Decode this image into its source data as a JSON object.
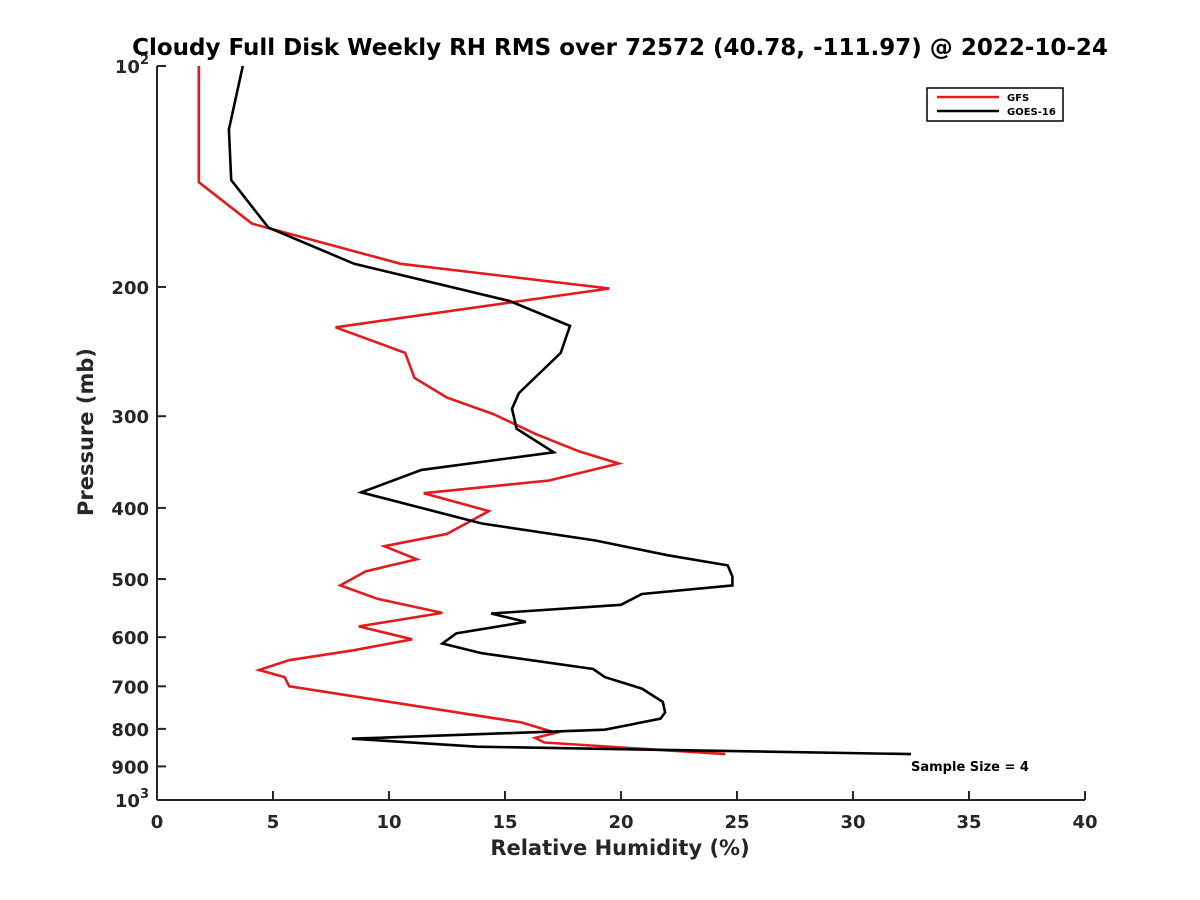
{
  "chart_data": {
    "type": "line",
    "title": "Cloudy Full Disk Weekly RH RMS over 72572 (40.78, -111.97) @ 2022-10-24",
    "xlabel": "Relative Humidity (%)",
    "ylabel": "Pressure (mb)",
    "xlim": [
      0,
      40
    ],
    "ylim": [
      100,
      1000
    ],
    "yscale": "log",
    "yreversed": true,
    "x_ticks": [
      0,
      5,
      10,
      15,
      20,
      25,
      30,
      35,
      40
    ],
    "x_tick_labels": [
      "0",
      "5",
      "10",
      "15",
      "20",
      "25",
      "30",
      "35",
      "40"
    ],
    "y_ticks": [
      100,
      200,
      300,
      400,
      500,
      600,
      700,
      800,
      900,
      1000
    ],
    "y_tick_labels": [
      {
        "base": "10",
        "exp": "2"
      },
      {
        "base": "200",
        "exp": ""
      },
      {
        "base": "300",
        "exp": ""
      },
      {
        "base": "400",
        "exp": ""
      },
      {
        "base": "500",
        "exp": ""
      },
      {
        "base": "600",
        "exp": ""
      },
      {
        "base": "700",
        "exp": ""
      },
      {
        "base": "800",
        "exp": ""
      },
      {
        "base": "900",
        "exp": ""
      },
      {
        "base": "10",
        "exp": "3"
      }
    ],
    "legend_position": "top-right",
    "annotation": "Sample Size = 4",
    "series": [
      {
        "name": "GFS",
        "color": "#e41a1c",
        "x": [
          1.8,
          1.8,
          4.1,
          10.5,
          19.5,
          7.7,
          10.7,
          11.1,
          12.5,
          14.5,
          16.3,
          18.2,
          19.9,
          16.9,
          11.5,
          14.3,
          12.5,
          9.8,
          11.2,
          9.0,
          7.9,
          9.5,
          12.3,
          8.7,
          11.0,
          8.5,
          5.7,
          4.4,
          5.5,
          5.7,
          15.7,
          17.2,
          16.3,
          16.7,
          24.5
        ],
        "y": [
          100,
          144,
          164,
          186,
          201,
          227,
          246,
          266,
          283,
          298,
          317,
          335,
          348,
          367,
          382,
          404,
          434,
          451,
          470,
          488,
          510,
          532,
          556,
          580,
          604,
          625,
          645,
          665,
          680,
          700,
          784,
          810,
          823,
          835,
          866
        ]
      },
      {
        "name": "GOES-16",
        "color": "#000000",
        "x": [
          3.7,
          3.1,
          3.2,
          4.8,
          8.5,
          15.2,
          17.8,
          17.4,
          16.5,
          15.6,
          15.3,
          15.5,
          17.1,
          11.4,
          8.8,
          14.0,
          18.9,
          22.0,
          24.6,
          24.8,
          24.8,
          20.9,
          20.0,
          14.4,
          15.9,
          12.9,
          12.3,
          14.0,
          18.8,
          19.3,
          20.9,
          21.8,
          21.9,
          21.7,
          19.3,
          8.4,
          13.8,
          32.5
        ],
        "y": [
          100,
          122,
          143,
          166,
          186,
          209,
          226,
          246,
          262,
          279,
          293,
          312,
          336,
          355,
          381,
          420,
          443,
          464,
          479,
          496,
          510,
          524,
          542,
          557,
          572,
          593,
          612,
          631,
          663,
          680,
          705,
          735,
          760,
          775,
          802,
          825,
          846,
          866
        ]
      }
    ]
  }
}
